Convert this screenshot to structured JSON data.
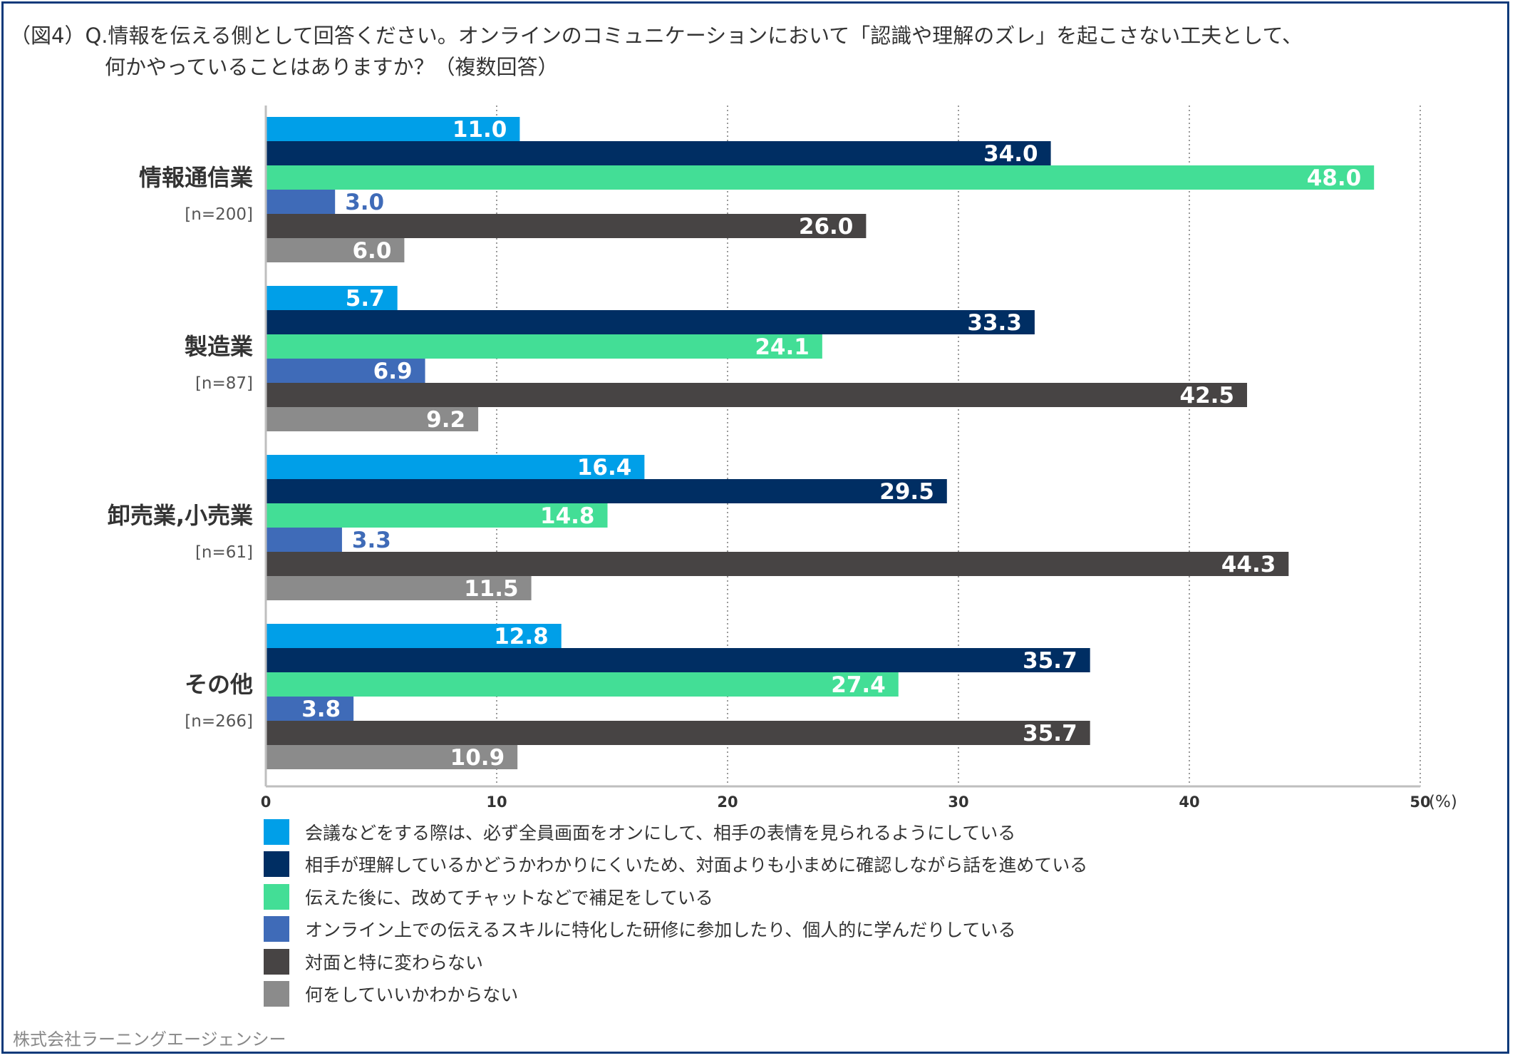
{
  "title": {
    "line1": "（図4）Q.情報を伝える側として回答ください。オンラインのコミュニケーションにおいて「認識や理解のズレ」を起こさない工夫として、",
    "line2": "何かやっていることはありますか？（複数回答）"
  },
  "credit": "株式会社ラーニングエージェンシー",
  "colors": [
    "#009fe8",
    "#002e63",
    "#43de96",
    "#3f6bb8",
    "#474444",
    "#8b8b8b"
  ],
  "chart_data": {
    "type": "bar",
    "orientation": "horizontal",
    "categories": [
      "情報通信業",
      "製造業",
      "卸売業,小売業",
      "その他"
    ],
    "category_n": [
      "[n=200]",
      "[n=87]",
      "[n=61]",
      "[n=266]"
    ],
    "series": [
      {
        "name": "会議などをする際は、必ず全員画面をオンにして、相手の表情を見られるようにしている",
        "values": [
          11.0,
          5.7,
          16.4,
          12.8
        ]
      },
      {
        "name": "相手が理解しているかどうかわかりにくいため、対面よりも小まめに確認しながら話を進めている",
        "values": [
          34.0,
          33.3,
          29.5,
          35.7
        ]
      },
      {
        "name": "伝えた後に、改めてチャットなどで補足をしている",
        "values": [
          48.0,
          24.1,
          14.8,
          27.4
        ]
      },
      {
        "name": "オンライン上での伝えるスキルに特化した研修に参加したり、個人的に学んだりしている",
        "values": [
          3.0,
          6.9,
          3.3,
          3.8
        ]
      },
      {
        "name": "対面と特に変わらない",
        "values": [
          26.0,
          42.5,
          44.3,
          35.7
        ]
      },
      {
        "name": "何をしていいかわからない",
        "values": [
          6.0,
          9.2,
          11.5,
          10.9
        ]
      }
    ],
    "xlim": [
      0,
      50
    ],
    "xticks": [
      "0",
      "10",
      "20",
      "30",
      "40",
      "50"
    ],
    "unit": "(%)",
    "grid": "vertical-dotted",
    "legend_position": "bottom"
  }
}
